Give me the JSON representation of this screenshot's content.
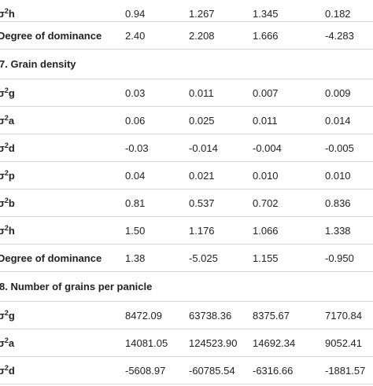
{
  "rows": [
    {
      "type": "data",
      "sigma": true,
      "sub": "h",
      "values": [
        "0.94",
        "1.267",
        "1.345",
        "0.182"
      ]
    },
    {
      "type": "data",
      "label": "Degree of dominance",
      "values": [
        "2.40",
        "2.208",
        "1.666",
        "-4.283"
      ]
    },
    {
      "type": "section",
      "label": "7. Grain density"
    },
    {
      "type": "data",
      "sigma": true,
      "sub": "g",
      "values": [
        "0.03",
        "0.011",
        "0.007",
        "0.009"
      ]
    },
    {
      "type": "data",
      "sigma": true,
      "sub": "a",
      "values": [
        "0.06",
        "0.025",
        "0.011",
        "0.014"
      ]
    },
    {
      "type": "data",
      "sigma": true,
      "sub": "d",
      "values": [
        "-0.03",
        "-0.014",
        "-0.004",
        "-0.005"
      ]
    },
    {
      "type": "data",
      "sigma": true,
      "sub": "p",
      "values": [
        "0.04",
        "0.021",
        "0.010",
        "0.010"
      ]
    },
    {
      "type": "data",
      "sigma": true,
      "sub": "b",
      "values": [
        "0.81",
        "0.537",
        "0.702",
        "0.836"
      ]
    },
    {
      "type": "data",
      "sigma": true,
      "sub": "h",
      "values": [
        "1.50",
        "1.176",
        "1.066",
        "1.338"
      ]
    },
    {
      "type": "data",
      "label": "Degree of dominance",
      "values": [
        "1.38",
        "-5.025",
        "1.155",
        "-0.950"
      ]
    },
    {
      "type": "section",
      "label": "8. Number of grains per panicle"
    },
    {
      "type": "data",
      "sigma": true,
      "sub": "g",
      "values": [
        "8472.09",
        "63738.36",
        "8375.67",
        "7170.84"
      ]
    },
    {
      "type": "data",
      "sigma": true,
      "sub": "a",
      "values": [
        "14081.05",
        "124523.90",
        "14692.34",
        "9052.41"
      ]
    },
    {
      "type": "data",
      "sigma": true,
      "sub": "d",
      "values": [
        "-5608.97",
        "-60785.54",
        "-6316.66",
        "-1881.57"
      ]
    }
  ],
  "sigma_symbol": "σ",
  "sigma_power": "2"
}
